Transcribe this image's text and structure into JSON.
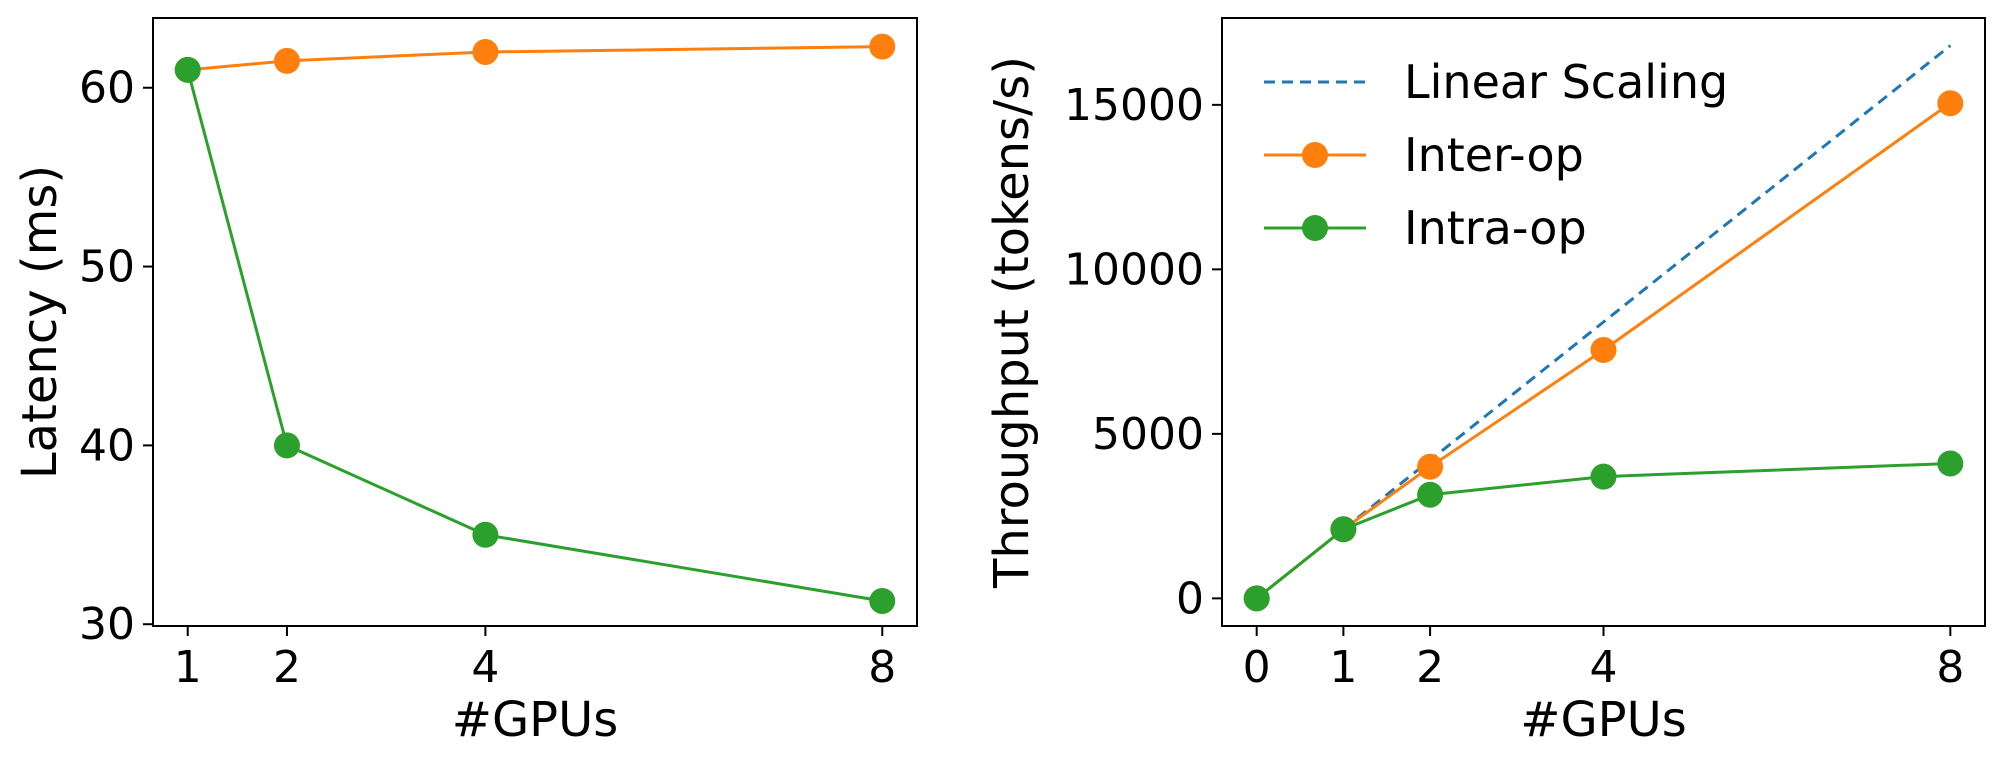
{
  "chart_data": [
    {
      "type": "line",
      "xlabel": "#GPUs",
      "ylabel": "Latency (ms)",
      "xlim": [
        0.65,
        8.35
      ],
      "ylim": [
        29.9,
        63.9
      ],
      "xticks": [
        1,
        2,
        4,
        8
      ],
      "yticks": [
        30,
        40,
        50,
        60
      ],
      "grid": false,
      "legend": "none",
      "series": [
        {
          "key": "inter",
          "color": "#ff7f0e",
          "marker": "circle",
          "x": [
            1,
            2,
            4,
            8
          ],
          "y": [
            61.0,
            61.5,
            62.0,
            62.3
          ]
        },
        {
          "key": "intra",
          "color": "#2ca02c",
          "marker": "circle",
          "x": [
            1,
            2,
            4,
            8
          ],
          "y": [
            61.0,
            40.0,
            35.0,
            31.3
          ]
        }
      ]
    },
    {
      "type": "line",
      "xlabel": "#GPUs",
      "ylabel": "Throughput (tokens/s)",
      "xlim": [
        -0.4,
        8.4
      ],
      "ylim": [
        -840,
        17640
      ],
      "xticks": [
        0,
        1,
        2,
        4,
        8
      ],
      "yticks": [
        0,
        5000,
        10000,
        15000
      ],
      "grid": false,
      "legend": "top-left",
      "series": [
        {
          "key": "linear",
          "name": "Linear Scaling",
          "color": "#1f77b4",
          "style": "dashed",
          "marker": "none",
          "x": [
            1,
            8
          ],
          "y": [
            2100,
            16800
          ]
        },
        {
          "key": "inter",
          "name": "Inter-op",
          "color": "#ff7f0e",
          "marker": "circle",
          "x": [
            0,
            1,
            2,
            4,
            8
          ],
          "y": [
            0,
            2100,
            4000,
            7550,
            15050
          ]
        },
        {
          "key": "intra",
          "name": "Intra-op",
          "color": "#2ca02c",
          "marker": "circle",
          "x": [
            0,
            1,
            2,
            4,
            8
          ],
          "y": [
            0,
            2100,
            3150,
            3700,
            4100
          ]
        }
      ]
    }
  ]
}
